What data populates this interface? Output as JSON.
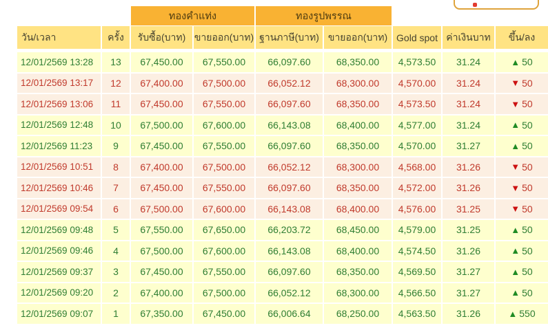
{
  "colors": {
    "group_header_bg": "#f9b233",
    "column_header_bg": "#ffe383",
    "row_up_bg": "#feffce",
    "row_down_bg": "#fcefe2",
    "up_text": "#2e7d32",
    "down_text": "#c0392b",
    "up_arrow": "#1f8b24",
    "down_arrow": "#cc1111",
    "header_text": "#45422f",
    "top_button_border": "#dfa33a",
    "red_fragment": "#e23b2f"
  },
  "top_button": {
    "icon": "red-glyph-fragment"
  },
  "table": {
    "group_headers": [
      "ทองคำแท่ง",
      "ทองรูปพรรณ"
    ],
    "columns": [
      "วัน/เวลา",
      "ครั้ง",
      "รับซื้อ(บาท)",
      "ขายออก(บาท)",
      "ฐานภาษี(บาท)",
      "ขายออก(บาท)",
      "Gold spot",
      "ค่าเงินบาท",
      "ขึ้น/ลง"
    ],
    "up_glyph": "▲",
    "down_glyph": "▼",
    "rows": [
      {
        "datetime": "12/01/2569 13:28",
        "round": "13",
        "bar_buy": "67,450.00",
        "bar_sell": "67,550.00",
        "orn_tax_base": "66,097.60",
        "orn_sell": "68,350.00",
        "gold_spot": "4,573.50",
        "baht_rate": "31.24",
        "direction": "up",
        "change": "50"
      },
      {
        "datetime": "12/01/2569 13:17",
        "round": "12",
        "bar_buy": "67,400.00",
        "bar_sell": "67,500.00",
        "orn_tax_base": "66,052.12",
        "orn_sell": "68,300.00",
        "gold_spot": "4,570.00",
        "baht_rate": "31.24",
        "direction": "down",
        "change": "50"
      },
      {
        "datetime": "12/01/2569 13:06",
        "round": "11",
        "bar_buy": "67,450.00",
        "bar_sell": "67,550.00",
        "orn_tax_base": "66,097.60",
        "orn_sell": "68,350.00",
        "gold_spot": "4,573.50",
        "baht_rate": "31.24",
        "direction": "down",
        "change": "50"
      },
      {
        "datetime": "12/01/2569 12:48",
        "round": "10",
        "bar_buy": "67,500.00",
        "bar_sell": "67,600.00",
        "orn_tax_base": "66,143.08",
        "orn_sell": "68,400.00",
        "gold_spot": "4,577.00",
        "baht_rate": "31.24",
        "direction": "up",
        "change": "50"
      },
      {
        "datetime": "12/01/2569 11:23",
        "round": "9",
        "bar_buy": "67,450.00",
        "bar_sell": "67,550.00",
        "orn_tax_base": "66,097.60",
        "orn_sell": "68,350.00",
        "gold_spot": "4,570.00",
        "baht_rate": "31.27",
        "direction": "up",
        "change": "50"
      },
      {
        "datetime": "12/01/2569 10:51",
        "round": "8",
        "bar_buy": "67,400.00",
        "bar_sell": "67,500.00",
        "orn_tax_base": "66,052.12",
        "orn_sell": "68,300.00",
        "gold_spot": "4,568.00",
        "baht_rate": "31.26",
        "direction": "down",
        "change": "50"
      },
      {
        "datetime": "12/01/2569 10:46",
        "round": "7",
        "bar_buy": "67,450.00",
        "bar_sell": "67,550.00",
        "orn_tax_base": "66,097.60",
        "orn_sell": "68,350.00",
        "gold_spot": "4,572.00",
        "baht_rate": "31.26",
        "direction": "down",
        "change": "50"
      },
      {
        "datetime": "12/01/2569 09:54",
        "round": "6",
        "bar_buy": "67,500.00",
        "bar_sell": "67,600.00",
        "orn_tax_base": "66,143.08",
        "orn_sell": "68,400.00",
        "gold_spot": "4,576.00",
        "baht_rate": "31.25",
        "direction": "down",
        "change": "50"
      },
      {
        "datetime": "12/01/2569 09:48",
        "round": "5",
        "bar_buy": "67,550.00",
        "bar_sell": "67,650.00",
        "orn_tax_base": "66,203.72",
        "orn_sell": "68,450.00",
        "gold_spot": "4,579.00",
        "baht_rate": "31.25",
        "direction": "up",
        "change": "50"
      },
      {
        "datetime": "12/01/2569 09:46",
        "round": "4",
        "bar_buy": "67,500.00",
        "bar_sell": "67,600.00",
        "orn_tax_base": "66,143.08",
        "orn_sell": "68,400.00",
        "gold_spot": "4,574.50",
        "baht_rate": "31.26",
        "direction": "up",
        "change": "50"
      },
      {
        "datetime": "12/01/2569 09:37",
        "round": "3",
        "bar_buy": "67,450.00",
        "bar_sell": "67,550.00",
        "orn_tax_base": "66,097.60",
        "orn_sell": "68,350.00",
        "gold_spot": "4,569.50",
        "baht_rate": "31.27",
        "direction": "up",
        "change": "50"
      },
      {
        "datetime": "12/01/2569 09:20",
        "round": "2",
        "bar_buy": "67,400.00",
        "bar_sell": "67,500.00",
        "orn_tax_base": "66,052.12",
        "orn_sell": "68,300.00",
        "gold_spot": "4,566.50",
        "baht_rate": "31.27",
        "direction": "up",
        "change": "50"
      },
      {
        "datetime": "12/01/2569 09:07",
        "round": "1",
        "bar_buy": "67,350.00",
        "bar_sell": "67,450.00",
        "orn_tax_base": "66,006.64",
        "orn_sell": "68,250.00",
        "gold_spot": "4,563.50",
        "baht_rate": "31.26",
        "direction": "up",
        "change": "550"
      }
    ]
  }
}
